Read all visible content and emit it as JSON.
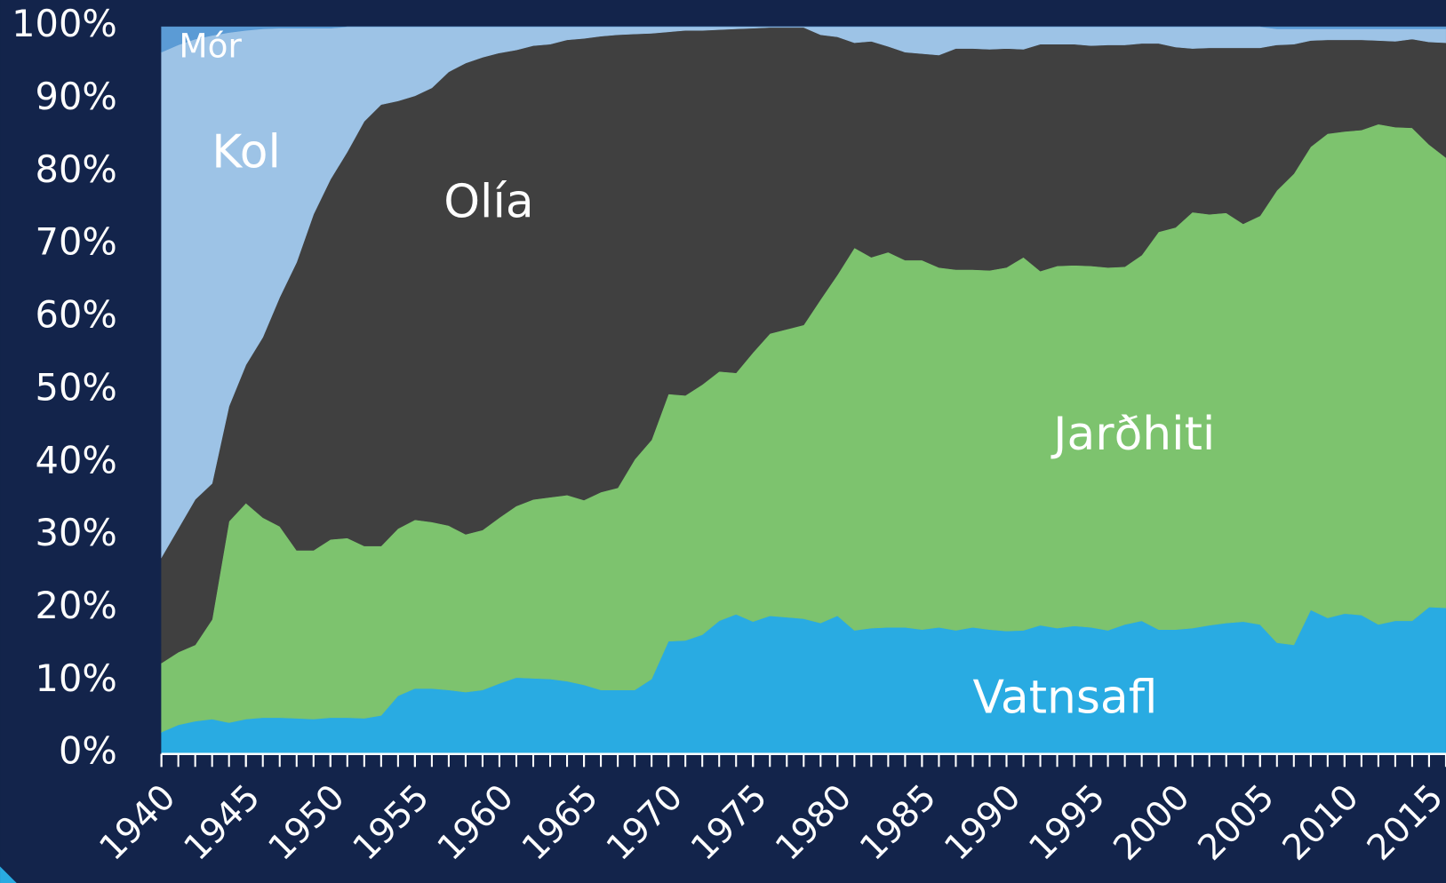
{
  "chart_data": {
    "type": "stacked_area",
    "x": [
      1940,
      1941,
      1942,
      1943,
      1944,
      1945,
      1946,
      1947,
      1948,
      1949,
      1950,
      1951,
      1952,
      1953,
      1954,
      1955,
      1956,
      1957,
      1958,
      1959,
      1960,
      1961,
      1962,
      1963,
      1964,
      1965,
      1966,
      1967,
      1968,
      1969,
      1970,
      1971,
      1972,
      1973,
      1974,
      1975,
      1976,
      1977,
      1978,
      1979,
      1980,
      1981,
      1982,
      1983,
      1984,
      1985,
      1986,
      1987,
      1988,
      1989,
      1990,
      1991,
      1992,
      1993,
      1994,
      1995,
      1996,
      1997,
      1998,
      1999,
      2000,
      2001,
      2002,
      2003,
      2004,
      2005,
      2006,
      2007,
      2008,
      2009,
      2010,
      2011,
      2012,
      2013,
      2014,
      2015,
      2016
    ],
    "series": [
      {
        "name": "Vatnsafl",
        "color": "#29abe2",
        "values": [
          3,
          4,
          4.5,
          4.8,
          4.3,
          4.8,
          5,
          5,
          4.9,
          4.8,
          5,
          5,
          4.9,
          5.3,
          8,
          9,
          9,
          8.8,
          8.5,
          8.8,
          9.7,
          10.5,
          10.4,
          10.3,
          10,
          9.5,
          8.8,
          8.8,
          8.8,
          10.3,
          15.5,
          15.6,
          16.4,
          18.3,
          19.2,
          18.2,
          19,
          18.8,
          18.6,
          18,
          19,
          17,
          17.3,
          17.4,
          17.4,
          17.1,
          17.4,
          17,
          17.4,
          17.1,
          16.9,
          17,
          17.7,
          17.3,
          17.6,
          17.4,
          17,
          17.8,
          18.3,
          17.1,
          17.1,
          17.3,
          17.7,
          18,
          18.2,
          17.8,
          15.3,
          15,
          19.8,
          18.7,
          19.3,
          19.1,
          17.8,
          18.3,
          18.3,
          20.2,
          20.1
        ]
      },
      {
        "name": "Jarðhiti",
        "color": "#7dc36e",
        "values": [
          9.5,
          10,
          10.5,
          13.7,
          27.7,
          29.7,
          27.5,
          26.3,
          23.1,
          23.2,
          24.5,
          24.7,
          23.7,
          23.3,
          23,
          23.2,
          22.9,
          22.6,
          21.7,
          22,
          22.8,
          23.6,
          24.6,
          25,
          25.6,
          25.4,
          27.2,
          27.8,
          31.7,
          32.9,
          34,
          33.7,
          34.4,
          34.3,
          33.2,
          37,
          38.8,
          39.6,
          40.4,
          44.5,
          46.9,
          52.6,
          51,
          51.6,
          50.5,
          50.8,
          49.5,
          49.6,
          49.2,
          49.4,
          50,
          51.3,
          48.7,
          49.8,
          49.6,
          49.7,
          49.9,
          49.2,
          50.3,
          54.7,
          55.3,
          57.2,
          56.5,
          56.4,
          54.7,
          56.2,
          62.2,
          64.8,
          63.7,
          66.6,
          66.3,
          66.7,
          68.8,
          67.9,
          67.8,
          63.6,
          61.9
        ]
      },
      {
        "name": "Olía",
        "color": "#404040",
        "values": [
          14.5,
          17,
          20,
          18.7,
          15.8,
          19,
          24.8,
          31.5,
          39.6,
          46.2,
          49.5,
          53.1,
          58.4,
          60.7,
          58.8,
          58.3,
          59.7,
          62.4,
          64.8,
          65,
          63.9,
          62.7,
          62.4,
          62.3,
          62.6,
          63.5,
          62.7,
          62.3,
          58.5,
          55.9,
          49.8,
          50.2,
          48.7,
          47,
          47.3,
          44.6,
          42.1,
          41.5,
          40.9,
          36.4,
          32.7,
          28.2,
          29.7,
          28.3,
          28.6,
          28.4,
          29.2,
          30.4,
          30.4,
          30.4,
          30.1,
          28.6,
          31.2,
          30.5,
          30.4,
          30.3,
          30.6,
          30.5,
          29.1,
          25.9,
          24.8,
          22.5,
          22.9,
          22.7,
          24.2,
          23.1,
          20,
          17.8,
          14.6,
          12.9,
          12.6,
          12.4,
          11.5,
          11.8,
          12.2,
          14.1,
          15.8
        ]
      },
      {
        "name": "Kol",
        "color": "#9dc3e6",
        "values": [
          69.5,
          66.5,
          63.3,
          61.6,
          51.4,
          46,
          42.4,
          37,
          32.2,
          25.6,
          20.8,
          17.2,
          13,
          10.7,
          10.2,
          9.5,
          8.4,
          6.2,
          5,
          4.2,
          3.6,
          3.2,
          2.6,
          2.4,
          1.8,
          1.6,
          1.3,
          1.1,
          1,
          0.9,
          0.7,
          0.5,
          0.5,
          0.4,
          0.3,
          0.2,
          0.1,
          0.1,
          0.1,
          1.1,
          1.4,
          2.2,
          2,
          2.7,
          3.5,
          3.7,
          3.9,
          3,
          3,
          3.1,
          3,
          3.1,
          2.4,
          2.4,
          2.4,
          2.6,
          2.5,
          2.5,
          2.3,
          2.3,
          2.8,
          3,
          2.9,
          2.9,
          2.9,
          2.9,
          2.2,
          2.1,
          1.6,
          1.5,
          1.5,
          1.5,
          1.6,
          1.7,
          1.4,
          1.8,
          1.9
        ]
      },
      {
        "name": "Mór",
        "color": "#5b9bd5",
        "values": [
          3.5,
          2.5,
          1.7,
          1.2,
          0.8,
          0.5,
          0.3,
          0.2,
          0.2,
          0.2,
          0.2,
          0,
          0,
          0,
          0,
          0,
          0,
          0,
          0,
          0,
          0,
          0,
          0,
          0,
          0,
          0,
          0,
          0,
          0,
          0,
          0,
          0,
          0,
          0,
          0,
          0,
          0,
          0,
          0,
          0,
          0,
          0,
          0,
          0,
          0,
          0,
          0,
          0,
          0,
          0,
          0,
          0,
          0,
          0,
          0,
          0,
          0,
          0,
          0,
          0,
          0,
          0,
          0,
          0,
          0,
          0,
          0.3,
          0.3,
          0.3,
          0.3,
          0.3,
          0.3,
          0.3,
          0.3,
          0.3,
          0.3,
          0.3
        ]
      }
    ],
    "xlim": [
      1940,
      2016
    ],
    "xticks": [
      1940,
      1945,
      1950,
      1955,
      1960,
      1965,
      1970,
      1975,
      1980,
      1985,
      1990,
      1995,
      2000,
      2005,
      2010,
      2015
    ],
    "ylim": [
      0,
      100
    ],
    "yticks": [
      {
        "value": 0,
        "label": "0%"
      },
      {
        "value": 10,
        "label": "10%"
      },
      {
        "value": 20,
        "label": "20%"
      },
      {
        "value": 30,
        "label": "30%"
      },
      {
        "value": 40,
        "label": "40%"
      },
      {
        "value": 50,
        "label": "50%"
      },
      {
        "value": 60,
        "label": "60%"
      },
      {
        "value": 70,
        "label": "70%"
      },
      {
        "value": 80,
        "label": "80%"
      },
      {
        "value": 90,
        "label": "90%"
      },
      {
        "value": 100,
        "label": "100%"
      }
    ],
    "grid": false
  }
}
